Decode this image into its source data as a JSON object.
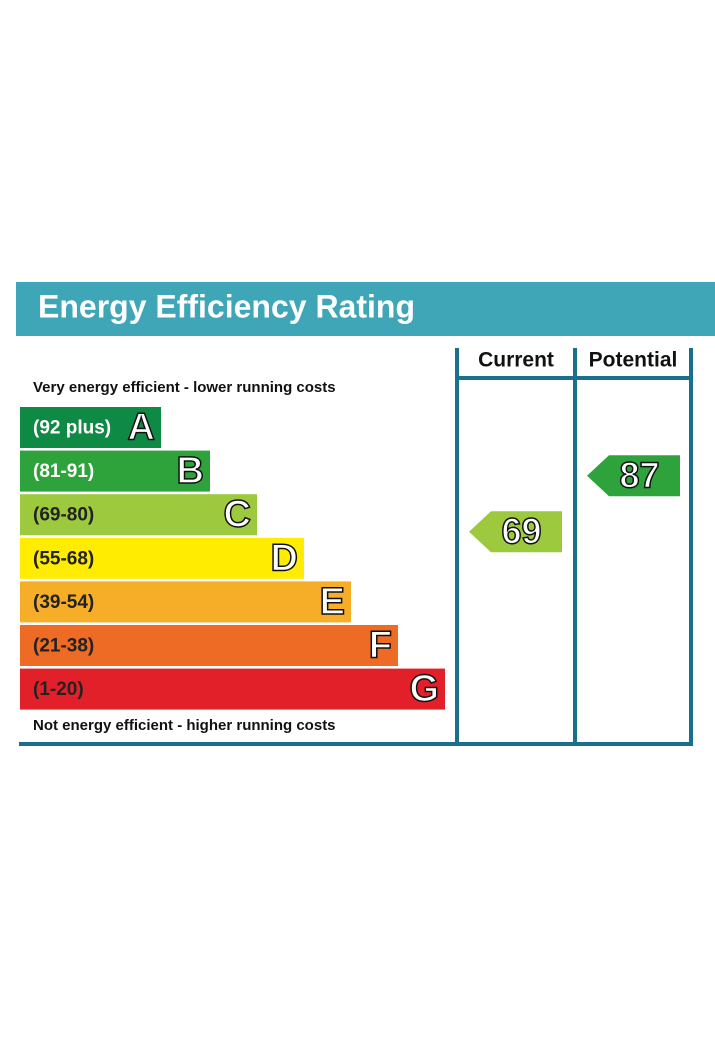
{
  "title": "Energy Efficiency Rating",
  "top_note": "Very energy efficient - lower running costs",
  "bottom_note": "Not energy efficient - higher running costs",
  "columns": [
    "Current",
    "Potential"
  ],
  "bands": [
    {
      "range": "(92 plus)",
      "letter": "A",
      "color": "#0f8a45",
      "label_color": "#ffffff"
    },
    {
      "range": "(81-91)",
      "letter": "B",
      "color": "#2ea33b",
      "label_color": "#ffffff"
    },
    {
      "range": "(69-80)",
      "letter": "C",
      "color": "#9cc93d",
      "label_color": "#222222"
    },
    {
      "range": "(55-68)",
      "letter": "D",
      "color": "#ffec00",
      "label_color": "#222222"
    },
    {
      "range": "(39-54)",
      "letter": "E",
      "color": "#f6ad27",
      "label_color": "#222222"
    },
    {
      "range": "(21-38)",
      "letter": "F",
      "color": "#ed6b24",
      "label_color": "#222222"
    },
    {
      "range": "(1-20)",
      "letter": "G",
      "color": "#e2202a",
      "label_color": "#222222"
    }
  ],
  "ratings": [
    69,
    87
  ]
}
